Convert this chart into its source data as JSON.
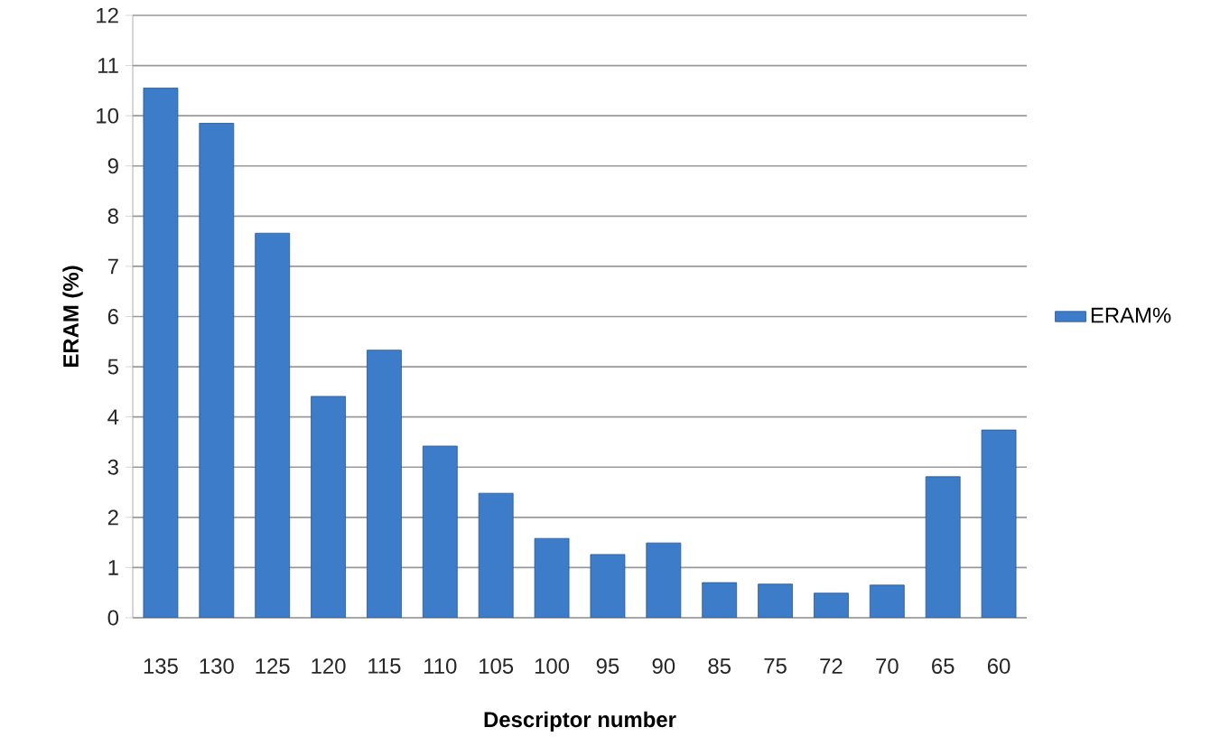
{
  "chart_data": {
    "type": "bar",
    "xlabel": "Descriptor number",
    "ylabel": "ERAM (%)",
    "categories": [
      "135",
      "130",
      "125",
      "120",
      "115",
      "110",
      "105",
      "100",
      "95",
      "90",
      "85",
      "75",
      "72",
      "70",
      "65",
      "60"
    ],
    "series": [
      {
        "name": "ERAM%",
        "color": "#3d7cc9",
        "values": [
          10.55,
          9.85,
          7.66,
          4.41,
          5.33,
          3.42,
          2.48,
          1.58,
          1.26,
          1.49,
          0.7,
          0.67,
          0.49,
          0.65,
          2.81,
          3.74
        ]
      }
    ],
    "ylim": [
      0,
      12
    ],
    "yticks": [
      0,
      1,
      2,
      3,
      4,
      5,
      6,
      7,
      8,
      9,
      10,
      11,
      12
    ],
    "grid": "y",
    "legend": "right"
  }
}
